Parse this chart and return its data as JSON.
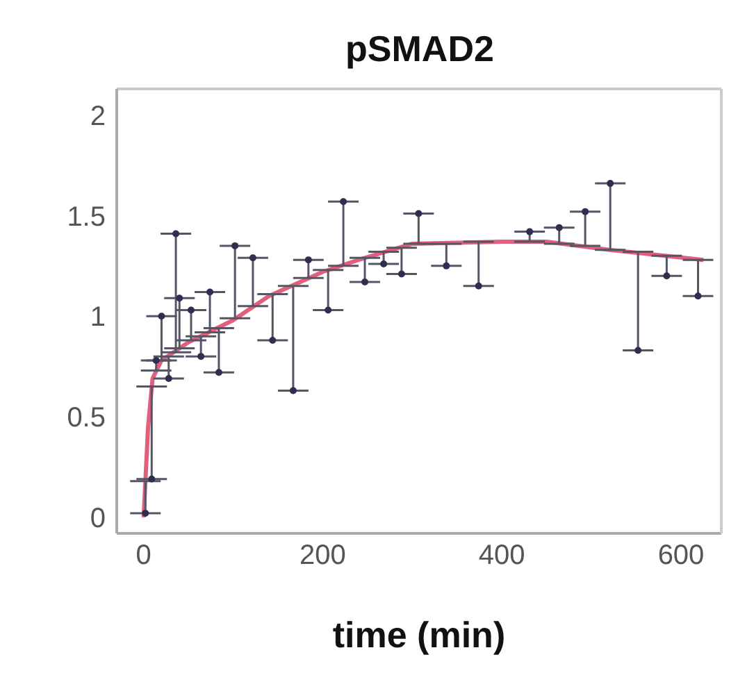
{
  "chart_data": {
    "type": "scatter",
    "title": "pSMAD2",
    "xlabel": "time (min)",
    "xlim": [
      -30,
      645
    ],
    "xticks": [
      0,
      200,
      400,
      600
    ],
    "ylim": [
      -0.08,
      2.13
    ],
    "yticks": [
      0,
      0.5,
      1,
      1.5,
      2
    ],
    "grid": false,
    "legend": false,
    "series": [
      {
        "color": "#2e2e50",
        "marker": "circle",
        "x": [
          2,
          9,
          14,
          20,
          28,
          36,
          40,
          53,
          64,
          74,
          84,
          102,
          122,
          144,
          167,
          184,
          206,
          223,
          247,
          268,
          288,
          307,
          338,
          374,
          431,
          464,
          493,
          521,
          552,
          584,
          619
        ],
        "values": [
          0.02,
          0.19,
          0.78,
          1.0,
          0.69,
          1.41,
          1.09,
          1.03,
          0.8,
          1.12,
          0.72,
          1.35,
          1.29,
          0.88,
          0.63,
          1.28,
          1.03,
          1.57,
          1.17,
          1.26,
          1.21,
          1.51,
          1.25,
          1.15,
          1.42,
          1.44,
          1.52,
          1.66,
          0.83,
          1.2,
          1.1
        ],
        "errors": [
          [
            0.02,
            0.18
          ],
          [
            0.19,
            0.65
          ],
          [
            0.73,
            0.78
          ],
          [
            0.78,
            1.0
          ],
          [
            0.69,
            0.8
          ],
          [
            0.82,
            1.41
          ],
          [
            0.84,
            1.09
          ],
          [
            0.88,
            1.03
          ],
          [
            0.8,
            0.9
          ],
          [
            0.92,
            1.12
          ],
          [
            0.72,
            0.94
          ],
          [
            0.99,
            1.35
          ],
          [
            1.05,
            1.29
          ],
          [
            0.88,
            1.11
          ],
          [
            0.63,
            1.15
          ],
          [
            1.19,
            1.28
          ],
          [
            1.03,
            1.23
          ],
          [
            1.25,
            1.57
          ],
          [
            1.17,
            1.29
          ],
          [
            1.26,
            1.32
          ],
          [
            1.21,
            1.34
          ],
          [
            1.36,
            1.51
          ],
          [
            1.25,
            1.36
          ],
          [
            1.15,
            1.37
          ],
          [
            1.37,
            1.42
          ],
          [
            1.36,
            1.44
          ],
          [
            1.35,
            1.52
          ],
          [
            1.33,
            1.66
          ],
          [
            0.83,
            1.32
          ],
          [
            1.2,
            1.3
          ],
          [
            1.1,
            1.28
          ]
        ]
      },
      {
        "type": "line",
        "color": "#e0607e",
        "x": [
          0,
          5,
          10,
          20,
          50,
          100,
          140,
          200,
          240,
          300,
          400,
          450,
          520,
          625
        ],
        "values": [
          0,
          0.45,
          0.69,
          0.78,
          0.87,
          0.98,
          1.1,
          1.22,
          1.28,
          1.36,
          1.37,
          1.37,
          1.33,
          1.28
        ]
      }
    ]
  }
}
